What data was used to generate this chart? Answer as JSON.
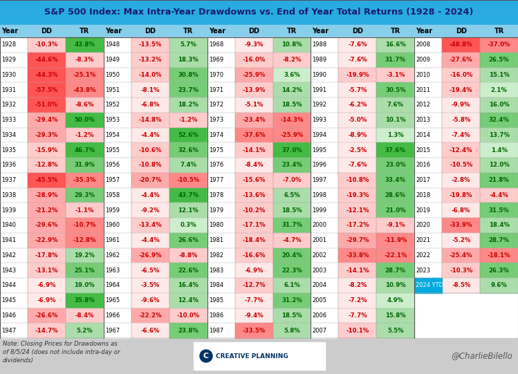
{
  "title": "S&P 500 Index: Max Intra-Year Drawdowns vs. End of Year Total Returns (1928 - 2024)",
  "data": [
    [
      1928,
      -10.3,
      43.8
    ],
    [
      1929,
      -44.6,
      -8.3
    ],
    [
      1930,
      -44.3,
      -25.1
    ],
    [
      1931,
      -57.5,
      -43.8
    ],
    [
      1932,
      -51.0,
      -8.6
    ],
    [
      1933,
      -29.4,
      50.0
    ],
    [
      1934,
      -29.3,
      -1.2
    ],
    [
      1935,
      -15.9,
      46.7
    ],
    [
      1936,
      -12.8,
      31.9
    ],
    [
      1937,
      -45.5,
      -35.3
    ],
    [
      1938,
      -28.9,
      29.3
    ],
    [
      1939,
      -21.2,
      -1.1
    ],
    [
      1940,
      -29.6,
      -10.7
    ],
    [
      1941,
      -22.9,
      -12.8
    ],
    [
      1942,
      -17.8,
      19.2
    ],
    [
      1943,
      -13.1,
      25.1
    ],
    [
      1944,
      -6.9,
      19.0
    ],
    [
      1945,
      -6.9,
      35.8
    ],
    [
      1946,
      -26.6,
      -8.4
    ],
    [
      1947,
      -14.7,
      5.2
    ],
    [
      1948,
      -13.5,
      5.7
    ],
    [
      1949,
      -13.2,
      18.3
    ],
    [
      1950,
      -14.0,
      30.8
    ],
    [
      1951,
      -8.1,
      23.7
    ],
    [
      1952,
      -6.8,
      18.2
    ],
    [
      1953,
      -14.8,
      -1.2
    ],
    [
      1954,
      -4.4,
      52.6
    ],
    [
      1955,
      -10.6,
      32.6
    ],
    [
      1956,
      -10.8,
      7.4
    ],
    [
      1957,
      -20.7,
      -10.5
    ],
    [
      1958,
      -4.4,
      43.7
    ],
    [
      1959,
      -9.2,
      12.1
    ],
    [
      1960,
      -13.4,
      0.3
    ],
    [
      1961,
      -4.4,
      26.6
    ],
    [
      1962,
      -26.9,
      -8.8
    ],
    [
      1963,
      -6.5,
      22.6
    ],
    [
      1964,
      -3.5,
      16.4
    ],
    [
      1965,
      -9.6,
      12.4
    ],
    [
      1966,
      -22.2,
      -10.0
    ],
    [
      1967,
      -6.6,
      23.8
    ],
    [
      1968,
      -9.3,
      10.8
    ],
    [
      1969,
      -16.0,
      -8.2
    ],
    [
      1970,
      -25.9,
      3.6
    ],
    [
      1971,
      -13.9,
      14.2
    ],
    [
      1972,
      -5.1,
      18.5
    ],
    [
      1973,
      -23.4,
      -14.3
    ],
    [
      1974,
      -37.6,
      -25.9
    ],
    [
      1975,
      -14.1,
      37.0
    ],
    [
      1976,
      -8.4,
      23.4
    ],
    [
      1977,
      -15.6,
      -7.0
    ],
    [
      1978,
      -13.6,
      6.5
    ],
    [
      1979,
      -10.2,
      18.5
    ],
    [
      1980,
      -17.1,
      31.7
    ],
    [
      1981,
      -18.4,
      -4.7
    ],
    [
      1982,
      -16.6,
      20.4
    ],
    [
      1983,
      -6.9,
      22.3
    ],
    [
      1984,
      -12.7,
      6.1
    ],
    [
      1985,
      -7.7,
      31.2
    ],
    [
      1986,
      -9.4,
      18.5
    ],
    [
      1987,
      -33.5,
      5.8
    ],
    [
      1988,
      -7.6,
      16.6
    ],
    [
      1989,
      -7.6,
      31.7
    ],
    [
      1990,
      -19.9,
      -3.1
    ],
    [
      1991,
      -5.7,
      30.5
    ],
    [
      1992,
      -6.2,
      7.6
    ],
    [
      1993,
      -5.0,
      10.1
    ],
    [
      1994,
      -8.9,
      1.3
    ],
    [
      1995,
      -2.5,
      37.6
    ],
    [
      1996,
      -7.6,
      23.0
    ],
    [
      1997,
      -10.8,
      33.4
    ],
    [
      1998,
      -19.3,
      28.6
    ],
    [
      1999,
      -12.1,
      21.0
    ],
    [
      2000,
      -17.2,
      -9.1
    ],
    [
      2001,
      -29.7,
      -11.9
    ],
    [
      2002,
      -33.8,
      -22.1
    ],
    [
      2003,
      -14.1,
      28.7
    ],
    [
      2004,
      -8.2,
      10.9
    ],
    [
      2005,
      -7.2,
      4.9
    ],
    [
      2006,
      -7.7,
      15.8
    ],
    [
      2007,
      -10.1,
      5.5
    ],
    [
      2008,
      -48.8,
      -37.0
    ],
    [
      2009,
      -27.6,
      26.5
    ],
    [
      2010,
      -16.0,
      15.1
    ],
    [
      2011,
      -19.4,
      2.1
    ],
    [
      2012,
      -9.9,
      16.0
    ],
    [
      2013,
      -5.8,
      32.4
    ],
    [
      2014,
      -7.4,
      13.7
    ],
    [
      2015,
      -12.4,
      1.4
    ],
    [
      2016,
      -10.5,
      12.0
    ],
    [
      2017,
      -2.8,
      21.8
    ],
    [
      2018,
      -19.8,
      -4.4
    ],
    [
      2019,
      -6.8,
      31.5
    ],
    [
      2020,
      -33.9,
      18.4
    ],
    [
      2021,
      -5.2,
      28.7
    ],
    [
      2022,
      -25.4,
      -18.1
    ],
    [
      2023,
      -10.3,
      26.3
    ],
    [
      2024,
      -8.5,
      9.6
    ]
  ],
  "title_bg": "#29abe2",
  "title_color": "#1a1a6e",
  "header_bg": "#87ceeb",
  "footer_bg": "#cccccc",
  "note": "Note: Closing Prices for Drawdowns as\nof 8/5/24 (does not include intra-day or\ndividends)",
  "footer_right": "@CharlieBilello",
  "col_sizes": [
    20,
    20,
    20,
    20,
    17
  ]
}
